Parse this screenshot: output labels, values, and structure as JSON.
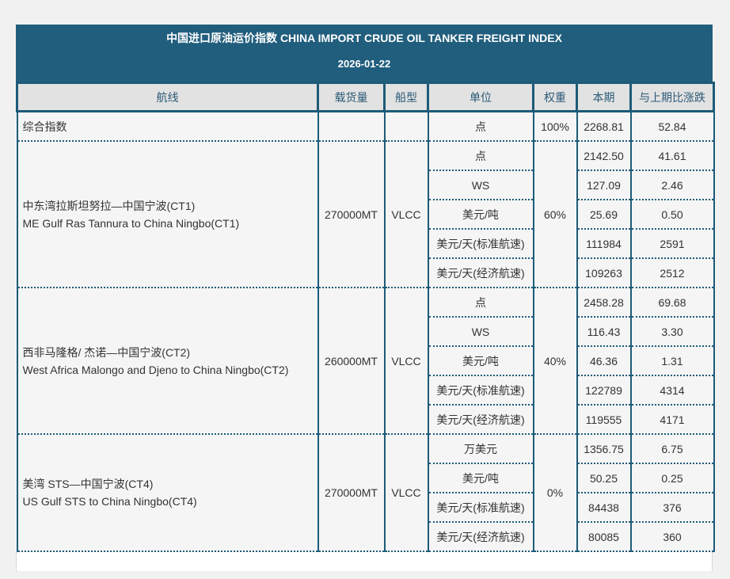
{
  "header": {
    "title": "中国进口原油运价指数 CHINA IMPORT CRUDE OIL TANKER FREIGHT INDEX",
    "date": "2026-01-22",
    "bg_color": "#215e7d",
    "text_color": "#ffffff"
  },
  "table": {
    "columns": [
      "航线",
      "载货量",
      "船型",
      "单位",
      "权重",
      "本期",
      "与上期比涨跌"
    ],
    "composite": {
      "route": "综合指数",
      "cargo": "",
      "vessel": "",
      "unit": "点",
      "weight": "100%",
      "current": "2268.81",
      "change": "52.84"
    },
    "groups": [
      {
        "route_cn": "中东湾拉斯坦努拉—中国宁波(CT1)",
        "route_en": "ME Gulf Ras Tannura to China Ningbo(CT1)",
        "cargo": "270000MT",
        "vessel": "VLCC",
        "weight": "60%",
        "rows": [
          {
            "unit": "点",
            "current": "2142.50",
            "change": "41.61"
          },
          {
            "unit": "WS",
            "current": "127.09",
            "change": "2.46"
          },
          {
            "unit": "美元/吨",
            "current": "25.69",
            "change": "0.50"
          },
          {
            "unit": "美元/天(标准航速)",
            "current": "111984",
            "change": "2591"
          },
          {
            "unit": "美元/天(经济航速)",
            "current": "109263",
            "change": "2512"
          }
        ]
      },
      {
        "route_cn": "西非马隆格/ 杰诺—中国宁波(CT2)",
        "route_en": "West Africa Malongo and Djeno to China Ningbo(CT2)",
        "cargo": "260000MT",
        "vessel": "VLCC",
        "weight": "40%",
        "rows": [
          {
            "unit": "点",
            "current": "2458.28",
            "change": "69.68"
          },
          {
            "unit": "WS",
            "current": "116.43",
            "change": "3.30"
          },
          {
            "unit": "美元/吨",
            "current": "46.36",
            "change": "1.31"
          },
          {
            "unit": "美元/天(标准航速)",
            "current": "122789",
            "change": "4314"
          },
          {
            "unit": "美元/天(经济航速)",
            "current": "119555",
            "change": "4171"
          }
        ]
      },
      {
        "route_cn": "美湾 STS—中国宁波(CT4)",
        "route_en": "US Gulf STS to China Ningbo(CT4)",
        "cargo": "270000MT",
        "vessel": "VLCC",
        "weight": "0%",
        "rows": [
          {
            "unit": "万美元",
            "current": "1356.75",
            "change": "6.75"
          },
          {
            "unit": "美元/吨",
            "current": "50.25",
            "change": "0.25"
          },
          {
            "unit": "美元/天(标准航速)",
            "current": "84438",
            "change": "376"
          },
          {
            "unit": "美元/天(经济航速)",
            "current": "80085",
            "change": "360"
          }
        ]
      }
    ]
  },
  "colors": {
    "page_bg": "#f1f1f1",
    "grid": "#1d5b78",
    "column_header_bg": "#e2e2e2",
    "column_header_text": "#2b5a77",
    "cell_bg": "#f5f5f5",
    "cell_text": "#333333"
  }
}
